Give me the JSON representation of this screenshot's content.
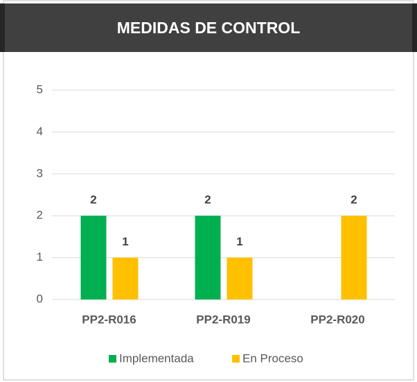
{
  "chart_data": {
    "type": "bar",
    "title": "MEDIDAS DE CONTROL",
    "categories": [
      "PP2-R016",
      "PP2-R019",
      "PP2-R020"
    ],
    "series": [
      {
        "name": "Implementada",
        "color": "#00b050",
        "values": [
          2,
          2,
          null
        ]
      },
      {
        "name": "En Proceso",
        "color": "#ffc000",
        "values": [
          1,
          1,
          2
        ]
      }
    ],
    "ylim": [
      0,
      5
    ],
    "yticks": [
      0,
      1,
      2,
      3,
      4,
      5
    ],
    "grid": true,
    "legend": "bottom"
  }
}
